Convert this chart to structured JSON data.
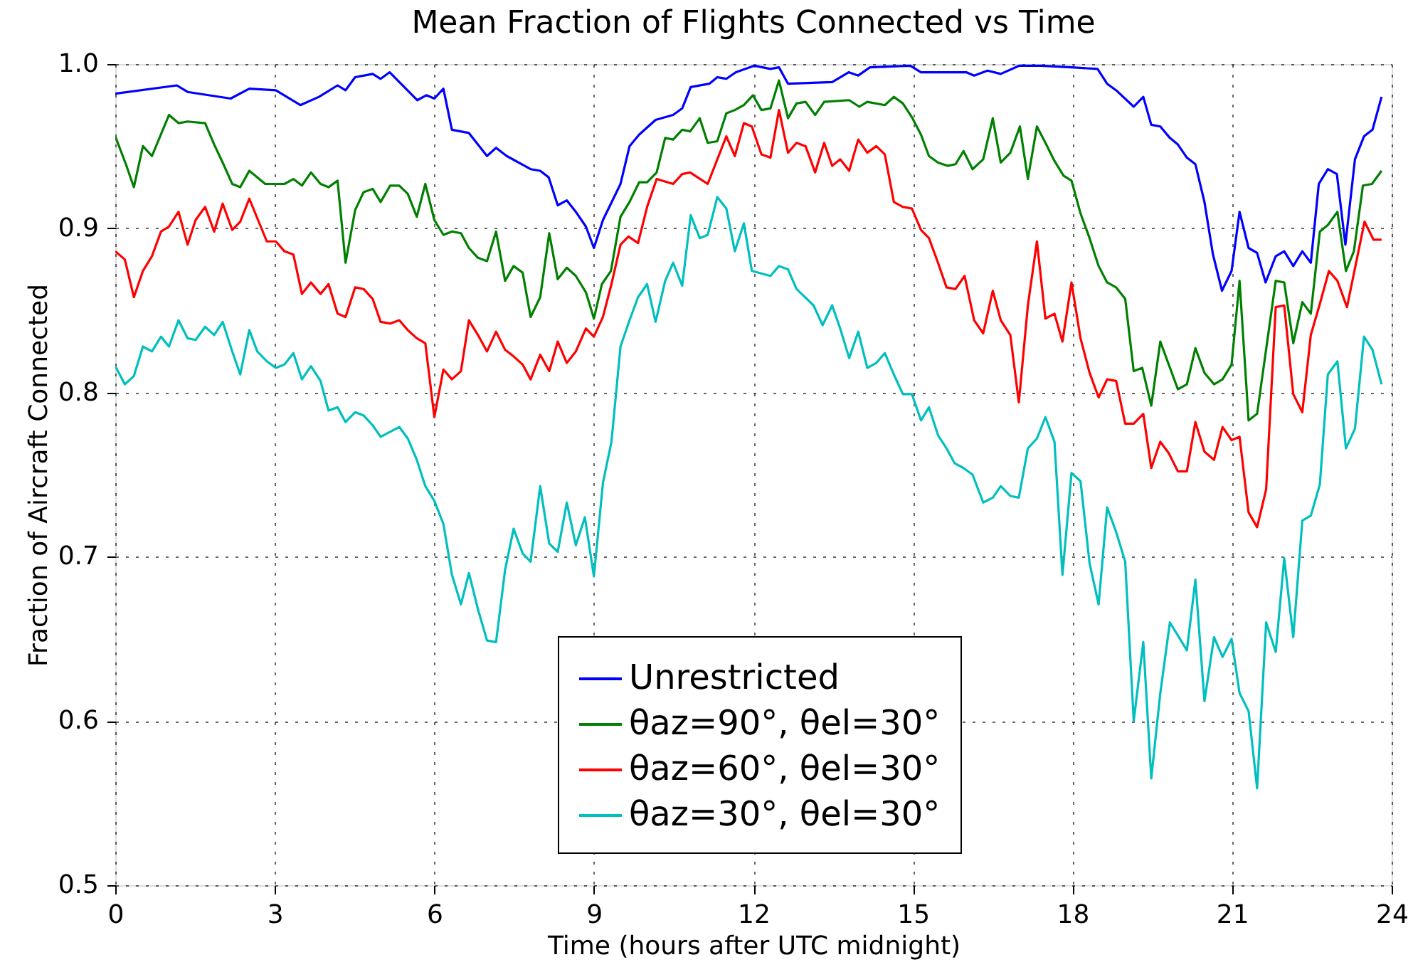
{
  "chart_data": {
    "type": "line",
    "title": "Mean Fraction of Flights Connected vs Time",
    "xlabel": "Time (hours after UTC midnight)",
    "ylabel": "Fraction of Aircraft Connected",
    "xlim": [
      0,
      24
    ],
    "xticks": [
      0,
      3,
      6,
      9,
      12,
      15,
      18,
      21,
      24
    ],
    "ylim": [
      0.5,
      1.0
    ],
    "yticks": [
      0.5,
      0.6,
      0.7,
      0.8,
      0.9,
      {
        "value": 1.0,
        "label": "1.0"
      }
    ],
    "grid": true,
    "legend": "bottom",
    "line_style": "solid",
    "marker": "none",
    "series": [
      {
        "name": "Unrestricted",
        "color": "#0000ff",
        "x": [
          0,
          1.16,
          1.36,
          2.17,
          2.52,
          3.02,
          3.48,
          3.83,
          4.18,
          4.33,
          4.51,
          4.84,
          4.99,
          5.16,
          5.68,
          5.85,
          6.0,
          6.17,
          6.33,
          6.65,
          6.99,
          7.16,
          7.36,
          7.81,
          7.99,
          8.15,
          8.32,
          8.49,
          8.66,
          8.85,
          9.0,
          9.17,
          9.5,
          9.67,
          9.85,
          10.16,
          10.49,
          10.66,
          10.82,
          11.17,
          11.32,
          11.49,
          11.67,
          12.02,
          12.32,
          12.48,
          12.65,
          13.48,
          13.79,
          13.97,
          14.19,
          14.95,
          15.15,
          16.0,
          16.15,
          16.4,
          16.65,
          17.0,
          17.41,
          17.98,
          18.47,
          18.65,
          18.82,
          19.15,
          19.33,
          19.48,
          19.65,
          19.83,
          19.98,
          20.15,
          20.31,
          20.48,
          20.64,
          20.81,
          20.99,
          21.14,
          21.31,
          21.47,
          21.63,
          21.82,
          21.98,
          22.15,
          22.32,
          22.48,
          22.63,
          22.8,
          22.97,
          23.13,
          23.31,
          23.48,
          23.64,
          23.81
        ],
        "values": [
          0.982,
          0.987,
          0.983,
          0.979,
          0.985,
          0.984,
          0.975,
          0.98,
          0.987,
          0.984,
          0.992,
          0.994,
          0.991,
          0.995,
          0.978,
          0.981,
          0.979,
          0.985,
          0.96,
          0.958,
          0.944,
          0.949,
          0.944,
          0.936,
          0.935,
          0.931,
          0.914,
          0.917,
          0.91,
          0.901,
          0.888,
          0.905,
          0.927,
          0.95,
          0.957,
          0.966,
          0.969,
          0.973,
          0.986,
          0.988,
          0.992,
          0.991,
          0.995,
          0.999,
          0.997,
          0.998,
          0.988,
          0.989,
          0.995,
          0.993,
          0.998,
          0.999,
          0.995,
          0.995,
          0.993,
          0.996,
          0.994,
          0.999,
          0.999,
          0.998,
          0.997,
          0.988,
          0.984,
          0.974,
          0.98,
          0.963,
          0.962,
          0.955,
          0.951,
          0.943,
          0.939,
          0.916,
          0.884,
          0.862,
          0.874,
          0.91,
          0.888,
          0.885,
          0.867,
          0.883,
          0.886,
          0.877,
          0.886,
          0.879,
          0.927,
          0.936,
          0.933,
          0.89,
          0.942,
          0.956,
          0.96,
          0.98
        ]
      },
      {
        "name": "θaz=90°, θel=30°",
        "color": "#008000",
        "x": [
          0,
          0.2,
          0.35,
          0.52,
          0.69,
          1.01,
          1.19,
          1.36,
          1.69,
          1.86,
          2.02,
          2.2,
          2.35,
          2.52,
          2.82,
          3.18,
          3.35,
          3.51,
          3.68,
          3.86,
          4.01,
          4.18,
          4.33,
          4.51,
          4.67,
          4.84,
          4.99,
          5.17,
          5.34,
          5.5,
          5.67,
          5.83,
          6.0,
          6.17,
          6.33,
          6.5,
          6.65,
          6.82,
          6.99,
          7.16,
          7.33,
          7.49,
          7.66,
          7.81,
          7.99,
          8.16,
          8.32,
          8.49,
          8.66,
          8.85,
          9.0,
          9.15,
          9.32,
          9.5,
          9.67,
          9.85,
          10.0,
          10.18,
          10.34,
          10.49,
          10.66,
          10.81,
          10.99,
          11.14,
          11.32,
          11.49,
          11.65,
          11.82,
          11.99,
          12.15,
          12.32,
          12.48,
          12.65,
          12.81,
          12.98,
          13.16,
          13.33,
          13.8,
          13.99,
          14.14,
          14.47,
          14.64,
          14.81,
          14.99,
          15.15,
          15.3,
          15.47,
          15.65,
          15.8,
          15.95,
          16.12,
          16.32,
          16.5,
          16.65,
          16.83,
          17.01,
          17.16,
          17.33,
          17.49,
          17.66,
          17.83,
          17.98,
          18.15,
          18.32,
          18.49,
          18.65,
          18.82,
          18.99,
          19.15,
          19.31,
          19.48,
          19.65,
          19.98,
          20.15,
          20.31,
          20.48,
          20.66,
          20.82,
          20.99,
          21.14,
          21.31,
          21.47,
          21.82,
          21.98,
          22.15,
          22.32,
          22.48,
          22.65,
          22.8,
          22.98,
          23.14,
          23.29,
          23.46,
          23.63,
          23.81
        ],
        "values": [
          0.956,
          0.939,
          0.925,
          0.95,
          0.944,
          0.969,
          0.964,
          0.965,
          0.964,
          0.951,
          0.94,
          0.927,
          0.925,
          0.935,
          0.927,
          0.927,
          0.93,
          0.926,
          0.934,
          0.927,
          0.925,
          0.929,
          0.879,
          0.911,
          0.922,
          0.924,
          0.916,
          0.926,
          0.926,
          0.921,
          0.907,
          0.927,
          0.905,
          0.896,
          0.898,
          0.897,
          0.888,
          0.882,
          0.88,
          0.898,
          0.868,
          0.877,
          0.873,
          0.846,
          0.858,
          0.897,
          0.869,
          0.876,
          0.871,
          0.861,
          0.845,
          0.866,
          0.874,
          0.907,
          0.916,
          0.928,
          0.928,
          0.934,
          0.955,
          0.954,
          0.96,
          0.959,
          0.967,
          0.952,
          0.953,
          0.97,
          0.972,
          0.975,
          0.981,
          0.972,
          0.973,
          0.99,
          0.967,
          0.976,
          0.977,
          0.969,
          0.977,
          0.978,
          0.974,
          0.977,
          0.975,
          0.98,
          0.976,
          0.967,
          0.957,
          0.944,
          0.94,
          0.938,
          0.939,
          0.947,
          0.936,
          0.942,
          0.967,
          0.94,
          0.946,
          0.962,
          0.93,
          0.962,
          0.952,
          0.941,
          0.932,
          0.929,
          0.909,
          0.894,
          0.877,
          0.867,
          0.864,
          0.857,
          0.813,
          0.815,
          0.792,
          0.831,
          0.802,
          0.805,
          0.827,
          0.812,
          0.805,
          0.808,
          0.817,
          0.868,
          0.783,
          0.787,
          0.868,
          0.867,
          0.83,
          0.855,
          0.848,
          0.898,
          0.902,
          0.91,
          0.874,
          0.886,
          0.926,
          0.927,
          0.935
        ]
      },
      {
        "name": "θaz=60°, θel=30°",
        "color": "#ff0000",
        "x": [
          0,
          0.18,
          0.35,
          0.52,
          0.69,
          0.86,
          1.01,
          1.19,
          1.36,
          1.51,
          1.69,
          1.86,
          2.02,
          2.2,
          2.35,
          2.52,
          2.85,
          3.02,
          3.18,
          3.35,
          3.51,
          3.68,
          3.86,
          4.01,
          4.18,
          4.33,
          4.51,
          4.67,
          4.84,
          4.99,
          5.17,
          5.34,
          5.5,
          5.67,
          5.83,
          6.0,
          6.17,
          6.33,
          6.5,
          6.65,
          6.82,
          6.99,
          7.16,
          7.33,
          7.49,
          7.66,
          7.81,
          7.99,
          8.16,
          8.32,
          8.49,
          8.66,
          8.85,
          9.0,
          9.17,
          9.33,
          9.5,
          9.65,
          9.83,
          10.0,
          10.18,
          10.49,
          10.66,
          10.81,
          11.14,
          11.49,
          11.65,
          11.82,
          11.97,
          12.15,
          12.32,
          12.48,
          12.65,
          12.81,
          12.98,
          13.16,
          13.33,
          13.48,
          13.63,
          13.8,
          13.97,
          14.14,
          14.31,
          14.47,
          14.64,
          14.81,
          14.98,
          15.15,
          15.3,
          15.47,
          15.63,
          15.8,
          15.97,
          16.15,
          16.32,
          16.5,
          16.65,
          16.83,
          16.99,
          17.16,
          17.33,
          17.49,
          17.66,
          17.81,
          17.98,
          18.15,
          18.32,
          18.49,
          18.65,
          18.82,
          18.99,
          19.15,
          19.33,
          19.48,
          19.65,
          19.81,
          19.98,
          20.15,
          20.31,
          20.48,
          20.66,
          20.82,
          20.99,
          21.14,
          21.31,
          21.47,
          21.64,
          21.82,
          21.98,
          22.15,
          22.32,
          22.48,
          22.65,
          22.82,
          22.98,
          23.16,
          23.49,
          23.66,
          23.81
        ],
        "values": [
          0.886,
          0.881,
          0.858,
          0.874,
          0.883,
          0.898,
          0.901,
          0.91,
          0.89,
          0.905,
          0.913,
          0.898,
          0.915,
          0.899,
          0.904,
          0.918,
          0.892,
          0.892,
          0.886,
          0.884,
          0.86,
          0.867,
          0.86,
          0.866,
          0.848,
          0.846,
          0.864,
          0.863,
          0.857,
          0.843,
          0.842,
          0.844,
          0.838,
          0.833,
          0.83,
          0.785,
          0.814,
          0.808,
          0.813,
          0.844,
          0.835,
          0.825,
          0.837,
          0.826,
          0.822,
          0.817,
          0.808,
          0.823,
          0.813,
          0.831,
          0.818,
          0.825,
          0.839,
          0.834,
          0.846,
          0.866,
          0.89,
          0.895,
          0.891,
          0.913,
          0.93,
          0.927,
          0.933,
          0.934,
          0.927,
          0.956,
          0.944,
          0.964,
          0.962,
          0.945,
          0.943,
          0.972,
          0.946,
          0.952,
          0.95,
          0.934,
          0.952,
          0.938,
          0.942,
          0.935,
          0.954,
          0.946,
          0.95,
          0.945,
          0.916,
          0.913,
          0.912,
          0.899,
          0.894,
          0.879,
          0.864,
          0.863,
          0.871,
          0.844,
          0.836,
          0.862,
          0.844,
          0.835,
          0.794,
          0.853,
          0.892,
          0.845,
          0.848,
          0.831,
          0.867,
          0.833,
          0.812,
          0.797,
          0.808,
          0.807,
          0.781,
          0.781,
          0.787,
          0.754,
          0.77,
          0.763,
          0.752,
          0.752,
          0.782,
          0.764,
          0.759,
          0.779,
          0.771,
          0.773,
          0.727,
          0.718,
          0.741,
          0.852,
          0.853,
          0.799,
          0.788,
          0.835,
          0.854,
          0.874,
          0.868,
          0.852,
          0.904,
          0.893,
          0.893
        ]
      },
      {
        "name": "θaz=30°, θel=30°",
        "color": "#00bfbf",
        "x": [
          0,
          0.18,
          0.35,
          0.52,
          0.69,
          0.86,
          1.01,
          1.19,
          1.36,
          1.51,
          1.69,
          1.86,
          2.02,
          2.2,
          2.35,
          2.52,
          2.67,
          2.85,
          3.02,
          3.18,
          3.35,
          3.51,
          3.68,
          3.86,
          4.01,
          4.18,
          4.33,
          4.51,
          4.67,
          4.84,
          4.99,
          5.34,
          5.5,
          5.67,
          5.83,
          6.0,
          6.17,
          6.33,
          6.5,
          6.65,
          6.82,
          6.99,
          7.16,
          7.33,
          7.49,
          7.66,
          7.81,
          7.99,
          8.16,
          8.32,
          8.49,
          8.66,
          8.83,
          9.0,
          9.17,
          9.33,
          9.5,
          9.67,
          9.83,
          10.0,
          10.16,
          10.34,
          10.49,
          10.66,
          10.82,
          10.99,
          11.14,
          11.32,
          11.49,
          11.65,
          11.82,
          11.97,
          12.32,
          12.48,
          12.65,
          12.81,
          13.13,
          13.3,
          13.48,
          13.63,
          13.8,
          13.97,
          14.14,
          14.31,
          14.47,
          14.64,
          14.81,
          14.98,
          15.15,
          15.3,
          15.47,
          15.63,
          15.78,
          15.95,
          16.12,
          16.32,
          16.5,
          16.65,
          16.83,
          16.99,
          17.16,
          17.33,
          17.49,
          17.66,
          17.81,
          17.98,
          18.15,
          18.32,
          18.49,
          18.65,
          18.82,
          18.99,
          19.15,
          19.33,
          19.48,
          19.65,
          19.83,
          20.15,
          20.31,
          20.48,
          20.66,
          20.82,
          20.99,
          21.14,
          21.31,
          21.47,
          21.64,
          21.82,
          21.98,
          22.15,
          22.32,
          22.48,
          22.65,
          22.8,
          22.98,
          23.14,
          23.31,
          23.48,
          23.64,
          23.81
        ],
        "values": [
          0.816,
          0.805,
          0.81,
          0.828,
          0.825,
          0.834,
          0.828,
          0.844,
          0.833,
          0.832,
          0.84,
          0.835,
          0.843,
          0.825,
          0.811,
          0.838,
          0.825,
          0.819,
          0.815,
          0.817,
          0.824,
          0.808,
          0.816,
          0.807,
          0.789,
          0.791,
          0.782,
          0.788,
          0.786,
          0.78,
          0.773,
          0.779,
          0.772,
          0.759,
          0.743,
          0.734,
          0.72,
          0.689,
          0.671,
          0.69,
          0.668,
          0.649,
          0.648,
          0.692,
          0.717,
          0.702,
          0.697,
          0.743,
          0.708,
          0.703,
          0.733,
          0.707,
          0.724,
          0.688,
          0.745,
          0.77,
          0.828,
          0.844,
          0.858,
          0.866,
          0.843,
          0.868,
          0.879,
          0.865,
          0.908,
          0.894,
          0.896,
          0.919,
          0.912,
          0.886,
          0.903,
          0.874,
          0.871,
          0.877,
          0.875,
          0.863,
          0.853,
          0.841,
          0.853,
          0.839,
          0.821,
          0.837,
          0.815,
          0.818,
          0.824,
          0.811,
          0.799,
          0.799,
          0.783,
          0.791,
          0.774,
          0.766,
          0.757,
          0.754,
          0.75,
          0.733,
          0.736,
          0.743,
          0.737,
          0.736,
          0.766,
          0.772,
          0.785,
          0.77,
          0.689,
          0.751,
          0.746,
          0.696,
          0.671,
          0.73,
          0.715,
          0.697,
          0.6,
          0.648,
          0.565,
          0.617,
          0.66,
          0.643,
          0.686,
          0.612,
          0.651,
          0.639,
          0.65,
          0.617,
          0.606,
          0.559,
          0.66,
          0.642,
          0.699,
          0.651,
          0.722,
          0.725,
          0.744,
          0.811,
          0.819,
          0.766,
          0.778,
          0.834,
          0.826,
          0.805
        ]
      }
    ]
  }
}
